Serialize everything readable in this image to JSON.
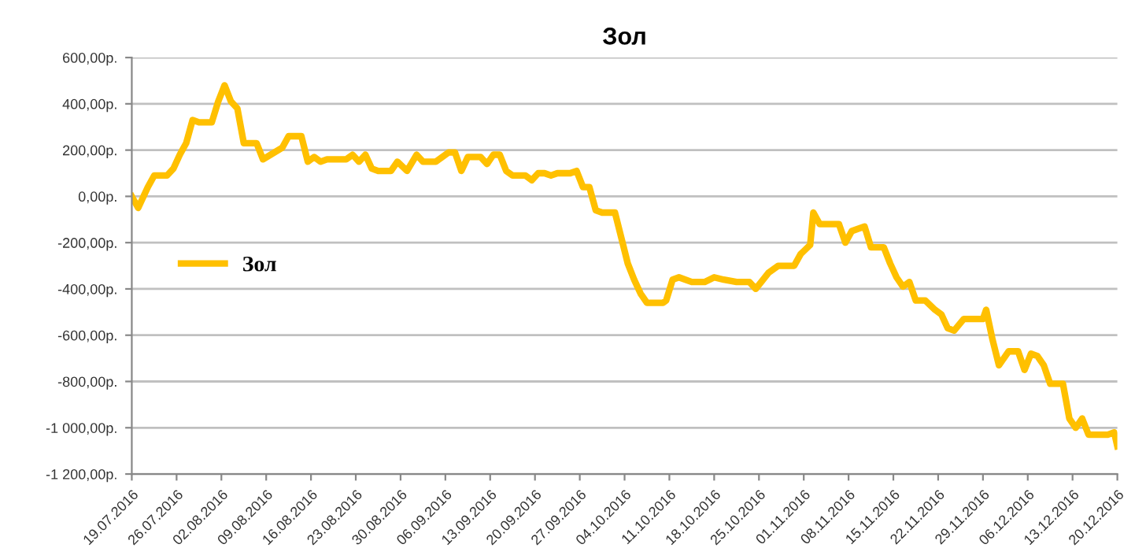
{
  "chart_data": {
    "type": "line",
    "title": "Зол",
    "legend": "center left",
    "grid": "y",
    "marker": "none",
    "line_style": "solid",
    "xlim": [
      "2016-07-19",
      "2016-12-20"
    ],
    "xticks": [
      {
        "value": "2016-07-19",
        "label": "19.07.2016"
      },
      {
        "value": "2016-07-26",
        "label": "26.07.2016"
      },
      {
        "value": "2016-08-02",
        "label": "02.08.2016"
      },
      {
        "value": "2016-08-09",
        "label": "09.08.2016"
      },
      {
        "value": "2016-08-16",
        "label": "16.08.2016"
      },
      {
        "value": "2016-08-23",
        "label": "23.08.2016"
      },
      {
        "value": "2016-08-30",
        "label": "30.08.2016"
      },
      {
        "value": "2016-09-06",
        "label": "06.09.2016"
      },
      {
        "value": "2016-09-13",
        "label": "13.09.2016"
      },
      {
        "value": "2016-09-20",
        "label": "20.09.2016"
      },
      {
        "value": "2016-09-27",
        "label": "27.09.2016"
      },
      {
        "value": "2016-10-04",
        "label": "04.10.2016"
      },
      {
        "value": "2016-10-11",
        "label": "11.10.2016"
      },
      {
        "value": "2016-10-18",
        "label": "18.10.2016"
      },
      {
        "value": "2016-10-25",
        "label": "25.10.2016"
      },
      {
        "value": "2016-11-01",
        "label": "01.11.2016"
      },
      {
        "value": "2016-11-08",
        "label": "08.11.2016"
      },
      {
        "value": "2016-11-15",
        "label": "15.11.2016"
      },
      {
        "value": "2016-11-22",
        "label": "22.11.2016"
      },
      {
        "value": "2016-11-29",
        "label": "29.11.2016"
      },
      {
        "value": "2016-12-06",
        "label": "06.12.2016"
      },
      {
        "value": "2016-12-13",
        "label": "13.12.2016"
      },
      {
        "value": "2016-12-20",
        "label": "20.12.2016"
      }
    ],
    "ylim": [
      -1200,
      600
    ],
    "yticks": [
      {
        "value": -1200,
        "label": "-1 200,00р."
      },
      {
        "value": -1000,
        "label": "-1 000,00р."
      },
      {
        "value": -800,
        "label": "-800,00р."
      },
      {
        "value": -600,
        "label": "-600,00р."
      },
      {
        "value": -400,
        "label": "-400,00р."
      },
      {
        "value": -200,
        "label": "-200,00р."
      },
      {
        "value": 0,
        "label": "0,00р."
      },
      {
        "value": 200,
        "label": "200,00р."
      },
      {
        "value": 400,
        "label": "400,00р."
      },
      {
        "value": 600,
        "label": "600,00р."
      }
    ],
    "series": [
      {
        "name": "Зол",
        "color": "#ffc000",
        "x": [
          "2016-07-19",
          "2016-07-20",
          "2016-07-21T12:00",
          "2016-07-22T12:00",
          "2016-07-24T12:00",
          "2016-07-25T12:00",
          "2016-07-26T12:00",
          "2016-07-27T12:00",
          "2016-07-28T12:00",
          "2016-07-29T12:00",
          "2016-07-31T12:00",
          "2016-08-01T12:00",
          "2016-08-02T12:00",
          "2016-08-03T12:00",
          "2016-08-04T12:00",
          "2016-08-05T12:00",
          "2016-08-07T12:00",
          "2016-08-08T12:00",
          "2016-08-11T12:00",
          "2016-08-12T12:00",
          "2016-08-14T12:00",
          "2016-08-15T12:00",
          "2016-08-16T12:00",
          "2016-08-17T12:00",
          "2016-08-18T12:00",
          "2016-08-21T12:00",
          "2016-08-22T12:00",
          "2016-08-23T12:00",
          "2016-08-24T12:00",
          "2016-08-25T12:00",
          "2016-08-26T12:00",
          "2016-08-28T12:00",
          "2016-08-29T12:00",
          "2016-08-31",
          "2016-09-01T12:00",
          "2016-09-02T12:00",
          "2016-09-04T12:00",
          "2016-09-06T12:00",
          "2016-09-07T12:00",
          "2016-09-08T12:00",
          "2016-09-09T12:00",
          "2016-09-11T12:00",
          "2016-09-12T12:00",
          "2016-09-13T12:00",
          "2016-09-14T12:00",
          "2016-09-15T12:00",
          "2016-09-16T12:00",
          "2016-09-18T12:00",
          "2016-09-19T12:00",
          "2016-09-20T12:00",
          "2016-09-21T12:00",
          "2016-09-22T12:00",
          "2016-09-23T12:00",
          "2016-09-25T12:00",
          "2016-09-26T12:00",
          "2016-09-27T12:00",
          "2016-09-28T12:00",
          "2016-09-29T12:00",
          "2016-09-30T12:00",
          "2016-10-02T12:00",
          "2016-10-03T12:00",
          "2016-10-04T12:00",
          "2016-10-05T12:00",
          "2016-10-06T12:00",
          "2016-10-07T12:00",
          "2016-10-10",
          "2016-10-10T12:00",
          "2016-10-11T12:00",
          "2016-10-12T12:00",
          "2016-10-14T12:00",
          "2016-10-16T12:00",
          "2016-10-18",
          "2016-10-19T12:00",
          "2016-10-21T12:00",
          "2016-10-23T12:00",
          "2016-10-24T12:00",
          "2016-10-26T12:00",
          "2016-10-28",
          "2016-10-30T12:00",
          "2016-10-31T12:00",
          "2016-11-02",
          "2016-11-02T12:00",
          "2016-11-03T12:00",
          "2016-11-06T12:00",
          "2016-11-07T12:00",
          "2016-11-08T12:00",
          "2016-11-10T12:00",
          "2016-11-11T12:00",
          "2016-11-13T12:00",
          "2016-11-14T12:00",
          "2016-11-15T12:00",
          "2016-11-16T12:00",
          "2016-11-17T12:00",
          "2016-11-18T12:00",
          "2016-11-20",
          "2016-11-21T12:00",
          "2016-11-22T12:00",
          "2016-11-23T12:00",
          "2016-11-24T12:00",
          "2016-11-26",
          "2016-11-29",
          "2016-11-29T12:00",
          "2016-11-30T12:00",
          "2016-12-01T12:00",
          "2016-12-03",
          "2016-12-04T12:00",
          "2016-12-05T12:00",
          "2016-12-06T12:00",
          "2016-12-07T12:00",
          "2016-12-08T12:00",
          "2016-12-09T12:00",
          "2016-12-11T12:00",
          "2016-12-12T12:00",
          "2016-12-13T12:00",
          "2016-12-14T12:00",
          "2016-12-15T12:00",
          "2016-12-18T12:00",
          "2016-12-19T12:00",
          "2016-12-20"
        ],
        "values": [
          0,
          -50,
          40,
          90,
          90,
          120,
          180,
          230,
          330,
          320,
          320,
          410,
          480,
          410,
          380,
          230,
          230,
          160,
          210,
          260,
          260,
          150,
          170,
          150,
          160,
          160,
          180,
          150,
          180,
          120,
          110,
          110,
          150,
          110,
          180,
          150,
          150,
          190,
          190,
          110,
          170,
          170,
          140,
          180,
          180,
          110,
          90,
          90,
          70,
          100,
          100,
          90,
          100,
          100,
          110,
          40,
          40,
          -60,
          -70,
          -70,
          -180,
          -290,
          -360,
          -420,
          -460,
          -460,
          -450,
          -360,
          -350,
          -370,
          -370,
          -350,
          -360,
          -370,
          -370,
          -400,
          -330,
          -300,
          -300,
          -250,
          -210,
          -70,
          -120,
          -120,
          -200,
          -150,
          -130,
          -220,
          -220,
          -290,
          -350,
          -390,
          -370,
          -450,
          -450,
          -490,
          -510,
          -570,
          -580,
          -530,
          -530,
          -490,
          -620,
          -730,
          -670,
          -670,
          -750,
          -680,
          -690,
          -730,
          -810,
          -810,
          -960,
          -1000,
          -960,
          -1030,
          -1030,
          -1020,
          -1080
        ]
      }
    ]
  }
}
